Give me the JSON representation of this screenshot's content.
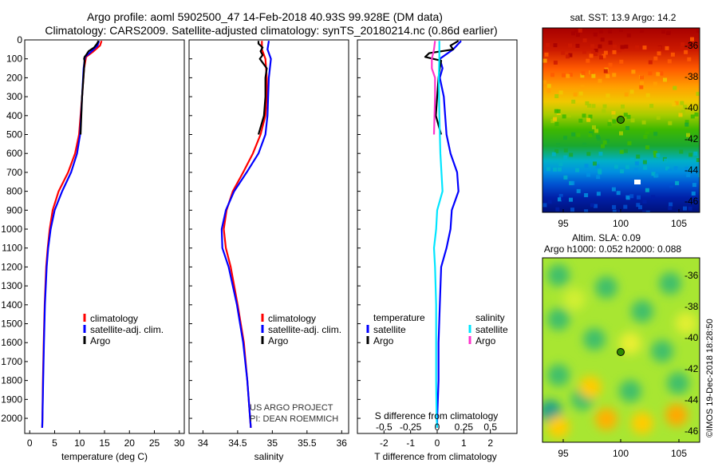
{
  "header": {
    "line1": "Argo profile: aoml 5902500_47 14-Feb-2018 40.93S 99.928E (DM data)",
    "line2": "Climatology: CARS2009. Satellite-adjusted climatology: synTS_20180214.nc (0.86d earlier)"
  },
  "colors": {
    "climatology": "#ff0000",
    "satellite_adj": "#0000ff",
    "argo": "#000000",
    "salinity_satellite": "#00e5ff",
    "salinity_argo": "#ff33cc",
    "float_marker": "#2e8b00"
  },
  "depth_axis": {
    "ylim": [
      2080,
      0
    ],
    "ticks": [
      "0",
      "100",
      "200",
      "300",
      "400",
      "500",
      "600",
      "700",
      "800",
      "900",
      "1000",
      "1100",
      "1200",
      "1300",
      "1400",
      "1500",
      "1600",
      "1700",
      "1800",
      "1900",
      "2000"
    ]
  },
  "chart_data": [
    {
      "type": "line",
      "id": "temperature",
      "xlabel": "temperature (deg C)",
      "xlim": [
        -1,
        31
      ],
      "xticks": [
        "0",
        "5",
        "10",
        "15",
        "20",
        "25",
        "30"
      ],
      "ylim": [
        2080,
        0
      ],
      "legend": [
        "climatology",
        "satellite-adj. clim.",
        "Argo"
      ],
      "legend_position": "lower-middle",
      "series": [
        {
          "name": "climatology",
          "depth": [
            5,
            30,
            60,
            90,
            150,
            300,
            500,
            600,
            700,
            800,
            900,
            1000,
            1100,
            1200,
            1400,
            1600,
            1800,
            2000,
            2050
          ],
          "values": [
            14.4,
            14.1,
            12.8,
            11.3,
            10.9,
            10.5,
            9.9,
            9.1,
            7.7,
            5.8,
            4.6,
            4.0,
            3.6,
            3.3,
            3.0,
            2.8,
            2.65,
            2.55,
            2.5
          ]
        },
        {
          "name": "satellite-adj. clim.",
          "depth": [
            5,
            30,
            60,
            90,
            150,
            300,
            500,
            600,
            700,
            800,
            900,
            1000,
            1100,
            1200,
            1400,
            1600,
            1800,
            2000,
            2050
          ],
          "values": [
            13.9,
            13.6,
            12.4,
            11.1,
            10.8,
            10.5,
            10.1,
            9.5,
            8.3,
            6.5,
            5.0,
            4.2,
            3.7,
            3.4,
            3.05,
            2.85,
            2.7,
            2.55,
            2.5
          ]
        },
        {
          "name": "Argo",
          "depth": [
            5,
            20,
            40,
            60,
            80,
            90,
            100,
            110,
            150,
            300,
            500
          ],
          "values": [
            13.8,
            13.5,
            12.9,
            11.8,
            11.3,
            11.0,
            10.9,
            11.0,
            10.9,
            10.5,
            10.2
          ]
        }
      ]
    },
    {
      "type": "line",
      "id": "salinity",
      "xlabel": "salinity",
      "xlim": [
        33.8,
        36.1
      ],
      "xticks": [
        "34",
        "34.5",
        "35",
        "35.5",
        "36"
      ],
      "ylim": [
        2080,
        0
      ],
      "legend": [
        "climatology",
        "satellite-adj. clim.",
        "Argo"
      ],
      "legend_position": "lower-middle",
      "annotation": [
        "US ARGO PROJECT",
        "PI: DEAN ROEMMICH"
      ],
      "series": [
        {
          "name": "climatology",
          "depth": [
            5,
            50,
            100,
            200,
            300,
            400,
            500,
            600,
            700,
            800,
            900,
            1000,
            1100,
            1200,
            1400,
            1600,
            1800,
            2000,
            2050
          ],
          "values": [
            34.85,
            34.85,
            34.9,
            34.92,
            34.92,
            34.9,
            34.83,
            34.72,
            34.58,
            34.43,
            34.34,
            34.3,
            34.33,
            34.4,
            34.5,
            34.59,
            34.64,
            34.68,
            34.69
          ]
        },
        {
          "name": "satellite-adj. clim.",
          "depth": [
            5,
            50,
            100,
            200,
            300,
            400,
            500,
            600,
            700,
            800,
            900,
            1000,
            1100,
            1200,
            1400,
            1600,
            1800,
            2000,
            2050
          ],
          "values": [
            34.95,
            34.93,
            34.98,
            34.95,
            34.94,
            34.93,
            34.9,
            34.8,
            34.63,
            34.45,
            34.33,
            34.27,
            34.28,
            34.37,
            34.49,
            34.58,
            34.64,
            34.68,
            34.69
          ]
        },
        {
          "name": "Argo",
          "depth": [
            5,
            20,
            40,
            60,
            80,
            100,
            150,
            200,
            300,
            400,
            500
          ],
          "values": [
            34.8,
            34.8,
            34.86,
            34.83,
            34.86,
            34.82,
            34.92,
            34.9,
            34.9,
            34.88,
            34.8
          ]
        }
      ]
    },
    {
      "type": "line",
      "id": "difference",
      "xlabel": "T difference from climatology",
      "xlabel_top": "S difference from climatology",
      "xlim": [
        -3,
        3
      ],
      "xticks": [
        "-2",
        "-1",
        "0",
        "1",
        "2"
      ],
      "xticks_salinity": [
        "-0.5",
        "-0.25",
        "0",
        "0.25",
        "0.5"
      ],
      "ylim": [
        2080,
        0
      ],
      "legend_temperature_title": "temperature",
      "legend_salinity_title": "salinity",
      "legend_temperature": [
        "satellite",
        "Argo"
      ],
      "legend_salinity": [
        "satellite",
        "Argo"
      ],
      "series": [
        {
          "name": "temperature satellite",
          "depth": [
            5,
            50,
            100,
            150,
            200,
            300,
            400,
            500,
            600,
            700,
            800,
            900,
            1000,
            1100,
            1200,
            1400,
            1600,
            1800,
            2000,
            2050
          ],
          "values": [
            0.9,
            0.6,
            0.1,
            0.2,
            0.1,
            0.25,
            0.3,
            0.35,
            0.5,
            0.75,
            0.8,
            0.55,
            0.5,
            0.35,
            0.15,
            0.1,
            0.05,
            0.05,
            0.0,
            0.0
          ]
        },
        {
          "name": "temperature Argo",
          "depth": [
            5,
            30,
            50,
            70,
            90,
            110,
            150,
            200,
            300,
            400,
            500
          ],
          "values": [
            0.8,
            0.5,
            0.6,
            -0.3,
            -0.45,
            0.15,
            0.1,
            0.05,
            0.0,
            -0.05,
            0.15
          ]
        },
        {
          "name": "salinity satellite",
          "depth": [
            5,
            100,
            200,
            400,
            600,
            800,
            900,
            1000,
            1100,
            1200,
            1400,
            1600,
            1800,
            2000,
            2050
          ],
          "values": [
            0.02,
            0.02,
            0.015,
            0.02,
            0.03,
            0.05,
            0.0,
            -0.01,
            -0.03,
            -0.02,
            -0.01,
            -0.01,
            -0.01,
            -0.005,
            0.0
          ]
        },
        {
          "name": "salinity Argo",
          "depth": [
            5,
            50,
            100,
            150,
            200,
            300,
            500
          ],
          "values": [
            -0.02,
            -0.03,
            -0.05,
            -0.05,
            -0.02,
            -0.02,
            -0.03
          ]
        }
      ]
    },
    {
      "type": "heatmap",
      "id": "sst_map",
      "title": "sat. SST: 13.9 Argo: 14.2",
      "xticks": [
        "95",
        "100",
        "105"
      ],
      "yticks": [
        "-36",
        "-38",
        "-40",
        "-42",
        "-44",
        "-46"
      ],
      "float_position": {
        "lon": 99.928,
        "lat": -40.93
      }
    },
    {
      "type": "heatmap",
      "id": "sla_map",
      "title_line1": "Altim. SLA: 0.09",
      "title_line2": "Argo h1000: 0.052 h2000: 0.088",
      "xticks": [
        "95",
        "100",
        "105"
      ],
      "yticks": [
        "-36",
        "-38",
        "-40",
        "-42",
        "-44",
        "-46"
      ],
      "float_position": {
        "lon": 99.928,
        "lat": -40.93
      }
    }
  ],
  "side_label": "©IMOS 19-Dec-2018 18:28:50"
}
